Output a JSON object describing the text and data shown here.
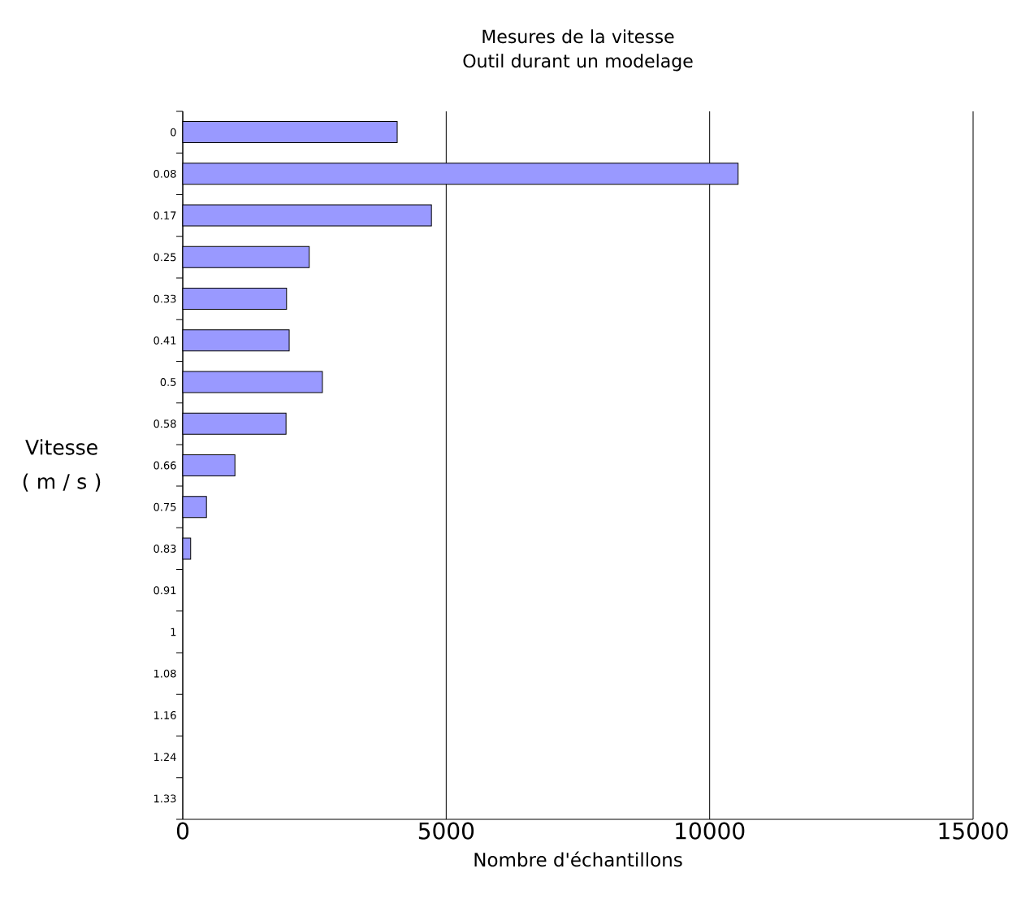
{
  "chart_data": {
    "type": "bar",
    "orientation": "horizontal",
    "title": "Mesures de la vitesse Outil durant un modelage",
    "xlabel": "Nombre d'échantillons",
    "ylabel": "Vitesse ( m / s )",
    "categories": [
      "0",
      "0.08",
      "0.17",
      "0.25",
      "0.33",
      "0.41",
      "0.5",
      "0.58",
      "0.66",
      "0.75",
      "0.83",
      "0.91",
      "1",
      "1.08",
      "1.16",
      "1.24",
      "1.33"
    ],
    "values": [
      4070,
      10540,
      4720,
      2400,
      1970,
      2020,
      2650,
      1960,
      990,
      450,
      150,
      null,
      null,
      null,
      null,
      null,
      null
    ],
    "color": "#9999ff",
    "xlim": [
      0,
      15000
    ],
    "xticks": [
      0,
      5000,
      10000,
      15000
    ],
    "grid": "x"
  }
}
